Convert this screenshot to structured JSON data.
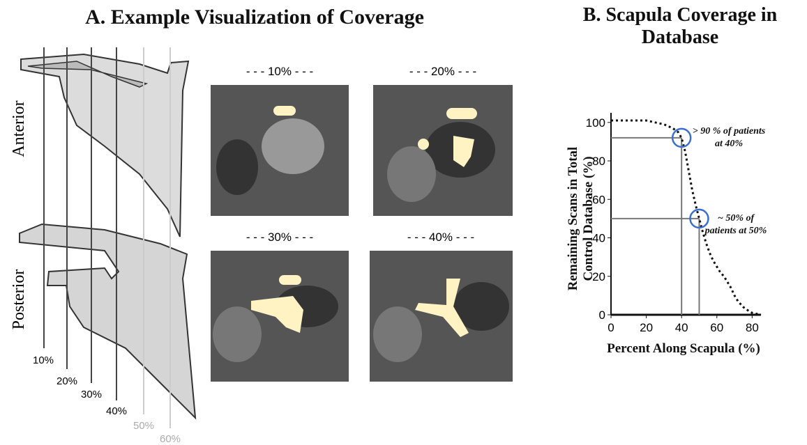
{
  "panel_a": {
    "title": "A. Example Visualization of Coverage",
    "views": [
      "Anterior",
      "Posterior"
    ],
    "slice_labels": [
      "10%",
      "20%",
      "30%",
      "40%",
      "50%",
      "60%"
    ],
    "image_labels": [
      "- - - 10% - - -",
      "- - - 20% - - -",
      "- - - 30% - - -",
      "- - - 40% - - -"
    ]
  },
  "chart_data": {
    "type": "line",
    "title": "B. Scapula Coverage in Database",
    "xlabel": "Percent Along Scapula (%)",
    "ylabel": "Remaining Scans in Total Control Database (%)",
    "x": [
      0,
      5,
      10,
      15,
      20,
      25,
      30,
      35,
      38,
      40,
      42,
      44,
      46,
      48,
      50,
      52,
      54,
      56,
      58,
      60,
      62,
      64,
      66,
      68,
      70,
      72,
      75,
      78,
      80,
      85
    ],
    "series": [
      {
        "color": "#111111",
        "values": [
          101,
          101,
          101,
          101,
          101,
          100,
          99,
          97,
          95,
          92,
          85,
          75,
          65,
          57,
          50,
          43,
          37,
          32,
          28,
          25,
          22,
          20,
          17,
          14,
          10,
          7,
          4,
          2,
          1,
          0
        ]
      }
    ],
    "xlim": [
      0,
      85
    ],
    "ylim": [
      0,
      105
    ],
    "xticks": [
      0,
      20,
      40,
      60,
      80
    ],
    "yticks": [
      0,
      20,
      40,
      60,
      80,
      100
    ],
    "reference_points": [
      {
        "x": 40,
        "y": 92
      },
      {
        "x": 50,
        "y": 50
      }
    ],
    "annotations": [
      "> 90 % of patients at 40%",
      "~ 50% of patients at 50%"
    ]
  }
}
